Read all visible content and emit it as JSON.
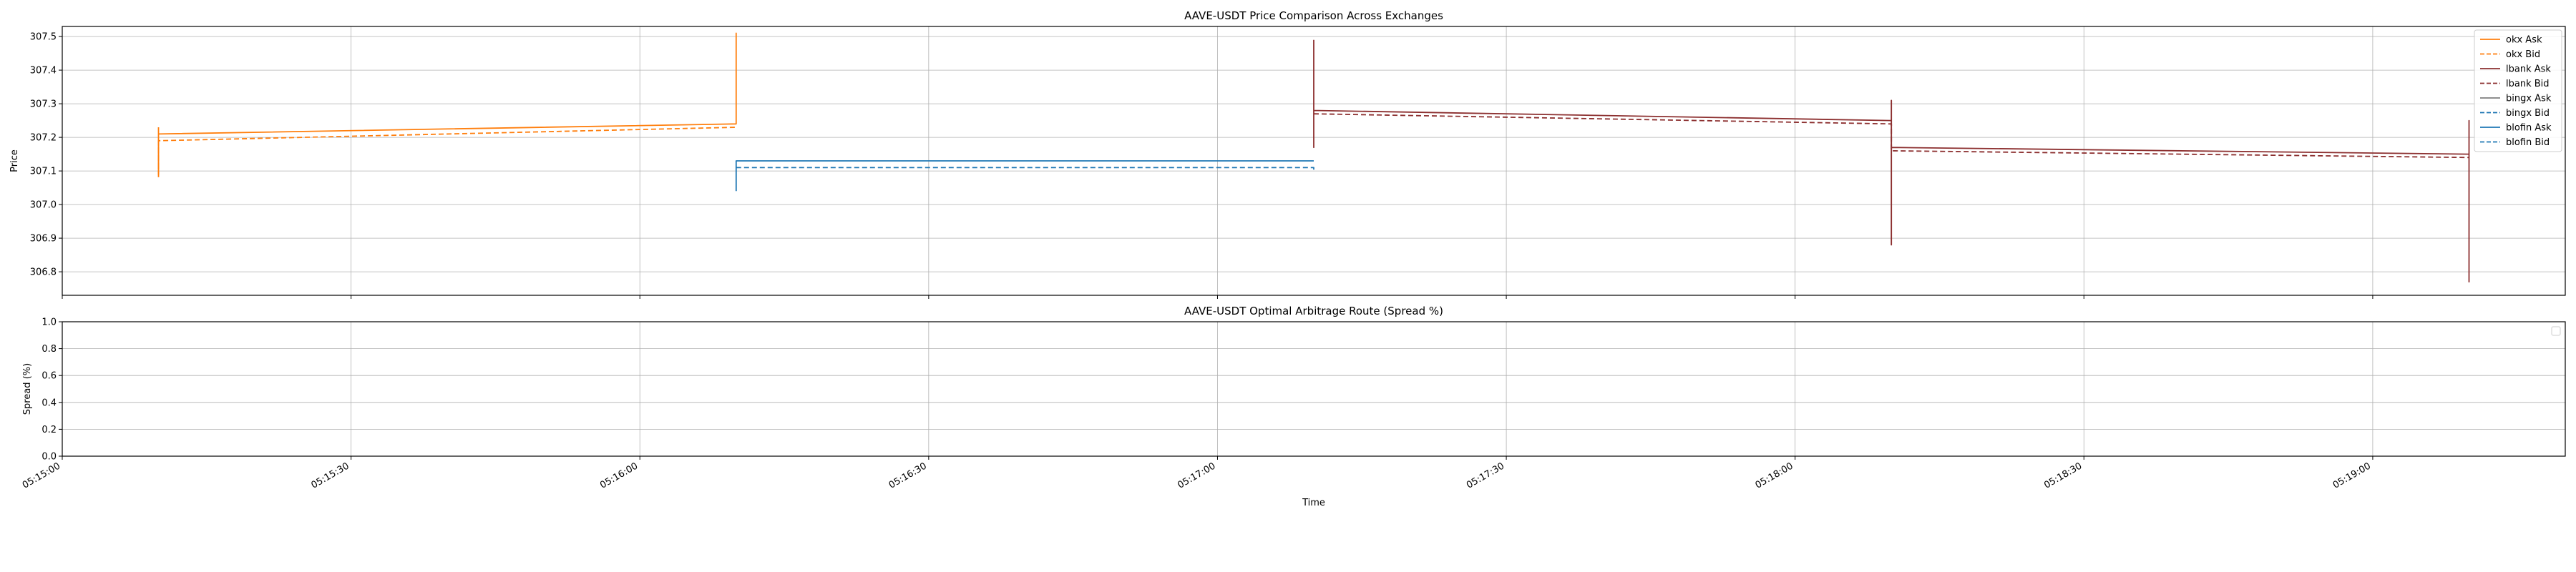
{
  "chart_data": [
    {
      "type": "line",
      "title": "AAVE-USDT Price Comparison Across Exchanges",
      "xlabel": "",
      "ylabel": "Price",
      "ylim": [
        306.73,
        307.53
      ],
      "xlim": [
        "05:15:00",
        "05:19:20"
      ],
      "yticks": [
        "306.8",
        "306.9",
        "307.0",
        "307.1",
        "307.2",
        "307.3",
        "307.4",
        "307.5"
      ],
      "grid": true,
      "legend_position": "upper right",
      "series": [
        {
          "name": "okx Ask",
          "color": "#ff7f0e",
          "dash": "solid",
          "points": [
            [
              "05:15:10",
              307.23
            ],
            [
              "05:15:10",
              307.09
            ],
            [
              "05:15:10",
              307.21
            ],
            [
              "05:16:10",
              307.24
            ],
            [
              "05:16:10",
              307.51
            ],
            [
              "05:16:10",
              307.24
            ]
          ]
        },
        {
          "name": "okx Bid",
          "color": "#ff7f0e",
          "dash": "dashed",
          "points": [
            [
              "05:15:10",
              307.19
            ],
            [
              "05:15:10",
              307.08
            ],
            [
              "05:15:10",
              307.19
            ],
            [
              "05:16:10",
              307.23
            ]
          ]
        },
        {
          "name": "lbank Ask",
          "color": "#8c2f2f",
          "dash": "solid",
          "points": [
            [
              "05:17:10",
              307.49
            ],
            [
              "05:17:10",
              307.17
            ],
            [
              "05:17:10",
              307.28
            ],
            [
              "05:18:10",
              307.25
            ],
            [
              "05:18:10",
              307.31
            ],
            [
              "05:18:10",
              306.88
            ],
            [
              "05:18:10",
              307.17
            ],
            [
              "05:19:10",
              307.15
            ],
            [
              "05:19:10",
              307.25
            ],
            [
              "05:19:10",
              306.77
            ],
            [
              "05:19:10",
              307.15
            ]
          ]
        },
        {
          "name": "lbank Bid",
          "color": "#8c2f2f",
          "dash": "dashed",
          "points": [
            [
              "05:17:10",
              307.27
            ],
            [
              "05:18:10",
              307.24
            ],
            [
              "05:18:10",
              307.16
            ],
            [
              "05:19:10",
              307.14
            ]
          ]
        },
        {
          "name": "bingx Ask",
          "color": "#7f7f7f",
          "dash": "solid",
          "points": []
        },
        {
          "name": "bingx Bid",
          "color": "#1f77b4",
          "dash": "dashed",
          "points": []
        },
        {
          "name": "blofin Ask",
          "color": "#1f77b4",
          "dash": "solid",
          "points": [
            [
              "05:16:10",
              307.04
            ],
            [
              "05:16:10",
              307.13
            ],
            [
              "05:17:10",
              307.13
            ]
          ]
        },
        {
          "name": "blofin Bid",
          "color": "#1f77b4",
          "dash": "dashed",
          "points": [
            [
              "05:16:10",
              307.11
            ],
            [
              "05:17:10",
              307.11
            ],
            [
              "05:17:10",
              307.1
            ]
          ]
        }
      ]
    },
    {
      "type": "line",
      "title": "AAVE-USDT Optimal Arbitrage Route (Spread %)",
      "xlabel": "Time",
      "ylabel": "Spread (%)",
      "ylim": [
        0.0,
        1.0
      ],
      "yticks": [
        "0.0",
        "0.2",
        "0.4",
        "0.6",
        "0.8",
        "1.0"
      ],
      "xticks": [
        "05:15:00",
        "05:15:30",
        "05:16:00",
        "05:16:30",
        "05:17:00",
        "05:17:30",
        "05:18:00",
        "05:18:30",
        "05:19:00"
      ],
      "grid": true,
      "legend_position": "upper right",
      "series": []
    }
  ]
}
